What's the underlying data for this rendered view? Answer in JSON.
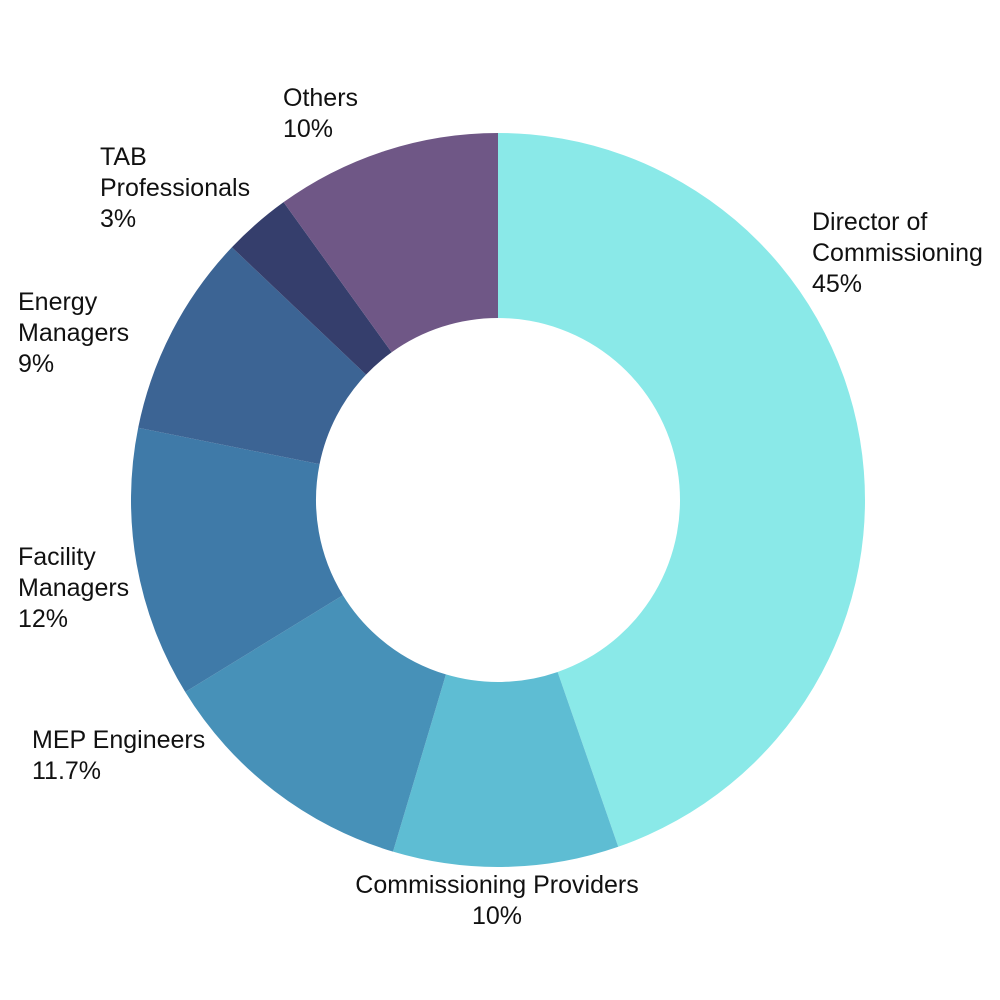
{
  "chart_data": {
    "type": "pie",
    "donut": true,
    "title": "",
    "start_angle_deg": 0,
    "direction": "clockwise",
    "slices": [
      {
        "label": "Director of Commissioning",
        "value": 45,
        "display": "45%",
        "color": "#8AE9E8"
      },
      {
        "label": "Commissioning Providers",
        "value": 10,
        "display": "10%",
        "color": "#5EBDD3"
      },
      {
        "label": "MEP Engineers",
        "value": 11.7,
        "display": "11.7%",
        "color": "#4791B8"
      },
      {
        "label": "Facility Managers",
        "value": 12,
        "display": "12%",
        "color": "#3F7AA8"
      },
      {
        "label": "Energy Managers",
        "value": 9,
        "display": "9%",
        "color": "#3C6494"
      },
      {
        "label": "TAB Professionals",
        "value": 3,
        "display": "3%",
        "color": "#353E6C"
      },
      {
        "label": "Others",
        "value": 10,
        "display": "10%",
        "color": "#6F5786"
      }
    ]
  }
}
